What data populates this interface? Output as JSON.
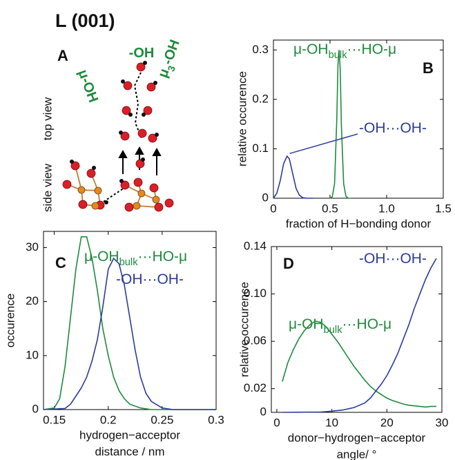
{
  "title": "L (001)",
  "panel_a": {
    "panel": "A",
    "labels": [
      "μ-OH",
      "-OH",
      "μ3-OH"
    ],
    "top_view": "top view",
    "side_view": "side view"
  },
  "chart_data": [
    {
      "type": "line",
      "panel": "B",
      "ylabel": "relative occurence",
      "xlabel": [
        "fraction of H−bonding donor"
      ],
      "xlim": [
        0,
        1.5
      ],
      "xticks": [
        0,
        0.5,
        {
          "value": 1,
          "label": "1.0"
        },
        1.5
      ],
      "ylim": [
        0,
        0.32
      ],
      "yticks": [
        0,
        0.1,
        0.2,
        0.3
      ],
      "series": [
        {
          "name": "μ-OHbulk···HO-μ",
          "color": "#1e8a3c",
          "x": [
            0.5,
            0.52,
            0.54,
            0.56,
            0.57,
            0.58,
            0.59,
            0.6,
            0.62,
            0.64,
            0.66,
            0.7
          ],
          "values": [
            0,
            0.003,
            0.03,
            0.16,
            0.27,
            0.3,
            0.26,
            0.15,
            0.03,
            0.004,
            0,
            0
          ]
        },
        {
          "name": "-OH···OH-",
          "color": "#2b3b98",
          "x": [
            0,
            0.03,
            0.06,
            0.09,
            0.12,
            0.14,
            0.17,
            0.2,
            0.23,
            0.26,
            0.3,
            0.35
          ],
          "values": [
            0,
            0.01,
            0.035,
            0.07,
            0.085,
            0.08,
            0.05,
            0.02,
            0.006,
            0.001,
            0,
            0
          ]
        }
      ]
    },
    {
      "type": "line",
      "panel": "C",
      "ylabel": "occurence",
      "xlabel": [
        "hydrogen−acceptor",
        "distance / nm"
      ],
      "xlim": [
        0.14,
        0.3
      ],
      "xticks": [
        0.15,
        0.2,
        0.25,
        0.3
      ],
      "ylim": [
        0,
        33
      ],
      "yticks": [
        0,
        10,
        20,
        30
      ],
      "series": [
        {
          "name": "μ-OHbulk···HO-μ",
          "color": "#1e8a3c",
          "x": [
            0.14,
            0.15,
            0.155,
            0.16,
            0.165,
            0.17,
            0.175,
            0.18,
            0.185,
            0.19,
            0.195,
            0.2,
            0.205,
            0.21,
            0.215,
            0.22,
            0.23,
            0.24,
            0.3
          ],
          "values": [
            0,
            0.3,
            2,
            8,
            17,
            26,
            32,
            32,
            28,
            22,
            15,
            10,
            6,
            3.5,
            2,
            1,
            0.3,
            0,
            0
          ]
        },
        {
          "name": "-OH···OH-",
          "color": "#2b3b98",
          "x": [
            0.14,
            0.16,
            0.165,
            0.17,
            0.175,
            0.18,
            0.185,
            0.19,
            0.195,
            0.2,
            0.205,
            0.21,
            0.215,
            0.22,
            0.225,
            0.23,
            0.235,
            0.24,
            0.25,
            0.26,
            0.3
          ],
          "values": [
            0,
            0.2,
            1,
            2.5,
            4,
            6,
            9,
            13,
            19,
            26,
            28,
            27,
            23,
            17,
            11,
            6,
            3,
            1.5,
            0.3,
            0,
            0
          ]
        }
      ]
    },
    {
      "type": "line",
      "panel": "D",
      "ylabel": "relative occurence",
      "xlabel": [
        "donor−hydrogen−acceptor",
        "angle/ °"
      ],
      "xlim": [
        -1,
        30
      ],
      "xticks": [
        0,
        10,
        20,
        30
      ],
      "ylim": [
        0,
        0.14
      ],
      "yticks": [
        0,
        0.02,
        0.06,
        {
          "value": 0.1,
          "label": "0.10"
        },
        0.14
      ],
      "series": [
        {
          "name": "μ-OHbulk···HO-μ",
          "color": "#1e8a3c",
          "x": [
            1,
            2,
            3,
            4,
            5,
            6,
            7,
            8,
            9,
            10,
            11,
            12,
            13,
            14,
            15,
            16,
            17,
            18,
            19,
            20,
            21,
            22,
            23,
            24,
            25,
            26,
            27,
            28,
            29
          ],
          "values": [
            0.026,
            0.042,
            0.053,
            0.062,
            0.069,
            0.074,
            0.077,
            0.076,
            0.072,
            0.066,
            0.06,
            0.053,
            0.046,
            0.039,
            0.033,
            0.027,
            0.022,
            0.018,
            0.015,
            0.012,
            0.01,
            0.0085,
            0.007,
            0.006,
            0.0055,
            0.005,
            0.0045,
            0.005,
            0.005
          ]
        },
        {
          "name": "-OH···OH-",
          "color": "#2b3b98",
          "x": [
            1,
            4,
            8,
            10,
            12,
            14,
            16,
            17,
            18,
            19,
            20,
            21,
            22,
            23,
            24,
            25,
            26,
            27,
            28,
            29
          ],
          "values": [
            0,
            0.0001,
            0.0003,
            0.001,
            0.002,
            0.004,
            0.008,
            0.012,
            0.018,
            0.024,
            0.031,
            0.04,
            0.05,
            0.062,
            0.074,
            0.088,
            0.1,
            0.112,
            0.122,
            0.13
          ]
        }
      ]
    }
  ]
}
